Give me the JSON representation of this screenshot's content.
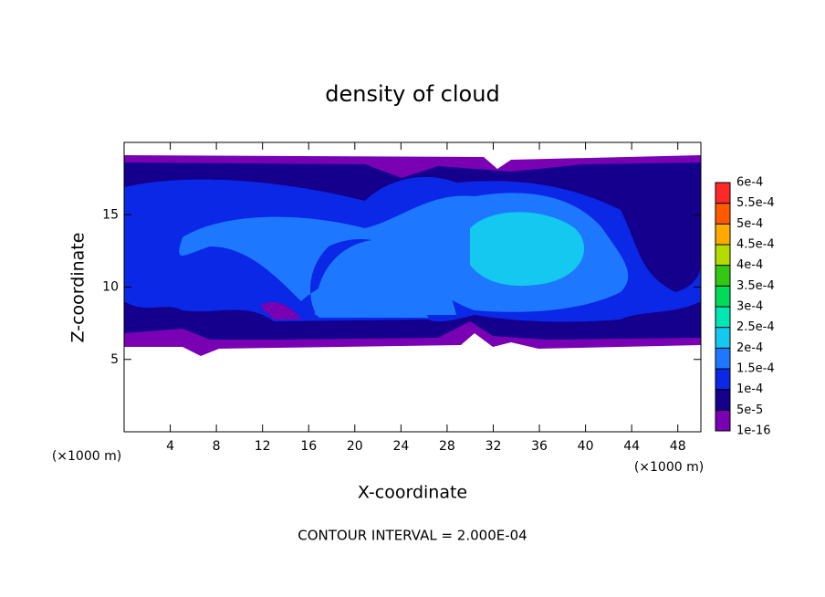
{
  "chart_data": {
    "type": "contour",
    "title": "density of cloud",
    "xlabel": "X-coordinate",
    "ylabel": "Z-coordinate",
    "x_unit": "(×1000 m)",
    "footer": "CONTOUR INTERVAL = 2.000E-04",
    "xlim": [
      0,
      50
    ],
    "ylim": [
      0,
      20
    ],
    "xticks": [
      4,
      8,
      12,
      16,
      20,
      24,
      28,
      32,
      36,
      40,
      44,
      48
    ],
    "yticks": [
      5,
      10,
      15
    ],
    "colorbar": {
      "ticks": [
        {
          "value": 1e-16,
          "label": "1e-16"
        },
        {
          "value": 5e-05,
          "label": "5e-5"
        },
        {
          "value": 0.0001,
          "label": "1e-4"
        },
        {
          "value": 0.00015,
          "label": "1.5e-4"
        },
        {
          "value": 0.0002,
          "label": "2e-4"
        },
        {
          "value": 0.00025,
          "label": "2.5e-4"
        },
        {
          "value": 0.0003,
          "label": "3e-4"
        },
        {
          "value": 0.00035,
          "label": "3.5e-4"
        },
        {
          "value": 0.0004,
          "label": "4e-4"
        },
        {
          "value": 0.00045,
          "label": "4.5e-4"
        },
        {
          "value": 0.0005,
          "label": "5e-4"
        },
        {
          "value": 0.00055,
          "label": "5.5e-4"
        },
        {
          "value": 0.0006,
          "label": "6e-4"
        }
      ],
      "colors": [
        "#7a00b4",
        "#14008c",
        "#0a28e6",
        "#1e78ff",
        "#14c8f0",
        "#00e6b4",
        "#00dc5a",
        "#32c814",
        "#b4dc00",
        "#ffaa00",
        "#ff5a00",
        "#ff2828",
        "#ff8c8c"
      ]
    }
  }
}
